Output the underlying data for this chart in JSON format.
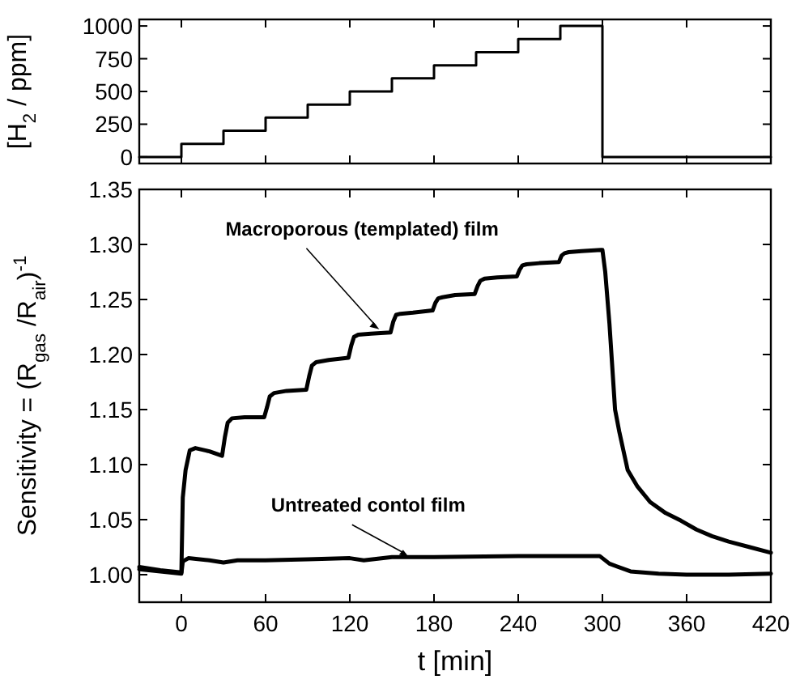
{
  "chart_data": [
    {
      "type": "step",
      "ylabel": "[H$_{2}$ / ppm]",
      "xlim": [
        -30,
        420
      ],
      "xticks": [
        0,
        60,
        120,
        180,
        240,
        300,
        360,
        420
      ],
      "ylim": [
        -50,
        1050
      ],
      "yticks": [
        0,
        250,
        500,
        750,
        1000
      ],
      "tick_labels": "y",
      "series": [
        {
          "color": "#000000",
          "x": [
            -30,
            0,
            30,
            60,
            90,
            120,
            150,
            180,
            210,
            240,
            270,
            300,
            420
          ],
          "values": [
            0,
            100,
            200,
            300,
            400,
            500,
            600,
            700,
            800,
            900,
            1000,
            0,
            0
          ]
        }
      ]
    },
    {
      "type": "line",
      "xlabel": "t [min]",
      "ylabel": "Sensitivity = (R$_{gas}$ /R$_{air}$)$^{-1}$",
      "xlim": [
        -30,
        420
      ],
      "xticks": [
        0,
        60,
        120,
        180,
        240,
        300,
        360,
        420
      ],
      "ylim": [
        0.975,
        1.35
      ],
      "yticks": [
        {
          "value": 1.0,
          "label": "1.00"
        },
        {
          "value": 1.05,
          "label": "1.05"
        },
        {
          "value": 1.1,
          "label": "1.10"
        },
        {
          "value": 1.15,
          "label": "1.15"
        },
        {
          "value": 1.2,
          "label": "1.20"
        },
        {
          "value": 1.25,
          "label": "1.25"
        },
        {
          "value": 1.3,
          "label": "1.30"
        },
        {
          "value": 1.35,
          "label": "1.35"
        }
      ],
      "annotations": [
        {
          "text": "Macroporous (templated) film",
          "x": 141,
          "y": 1.223
        },
        {
          "text": "Untreated contol film",
          "x": 162,
          "y": 1.016
        }
      ],
      "series": [
        {
          "color": "#000000",
          "x": [
            -30,
            -15,
            0,
            1,
            3,
            6,
            10,
            20,
            29,
            31,
            33,
            36,
            45,
            59,
            61,
            63,
            66,
            75,
            89,
            91,
            93,
            96,
            105,
            119,
            121,
            123,
            126,
            135,
            149,
            151,
            153,
            156,
            165,
            179,
            181,
            183,
            186,
            195,
            209,
            211,
            213,
            216,
            225,
            239,
            241,
            243,
            246,
            255,
            269,
            271,
            273,
            276,
            285,
            299,
            300,
            302,
            305,
            309,
            312,
            318,
            325,
            334,
            345,
            356,
            367,
            378,
            390,
            405,
            420
          ],
          "values": [
            1.007,
            1.004,
            1.002,
            1.07,
            1.095,
            1.113,
            1.115,
            1.112,
            1.108,
            1.125,
            1.138,
            1.142,
            1.143,
            1.143,
            1.152,
            1.162,
            1.165,
            1.167,
            1.168,
            1.18,
            1.19,
            1.193,
            1.195,
            1.197,
            1.208,
            1.216,
            1.218,
            1.219,
            1.22,
            1.23,
            1.236,
            1.237,
            1.238,
            1.24,
            1.247,
            1.251,
            1.252,
            1.254,
            1.255,
            1.262,
            1.267,
            1.269,
            1.27,
            1.271,
            1.277,
            1.281,
            1.282,
            1.283,
            1.284,
            1.29,
            1.292,
            1.293,
            1.294,
            1.295,
            1.295,
            1.275,
            1.228,
            1.15,
            1.13,
            1.095,
            1.08,
            1.066,
            1.056,
            1.049,
            1.041,
            1.035,
            1.03,
            1.025,
            1.02
          ]
        },
        {
          "color": "#000000",
          "x": [
            -30,
            -15,
            0,
            1,
            5,
            20,
            30,
            40,
            60,
            90,
            120,
            130,
            150,
            180,
            240,
            298,
            305,
            320,
            340,
            360,
            390,
            420
          ],
          "values": [
            1.005,
            1.003,
            1.001,
            1.012,
            1.015,
            1.013,
            1.011,
            1.013,
            1.013,
            1.014,
            1.015,
            1.013,
            1.016,
            1.016,
            1.017,
            1.017,
            1.01,
            1.003,
            1.001,
            1.0,
            1.0,
            1.001
          ]
        }
      ]
    }
  ]
}
